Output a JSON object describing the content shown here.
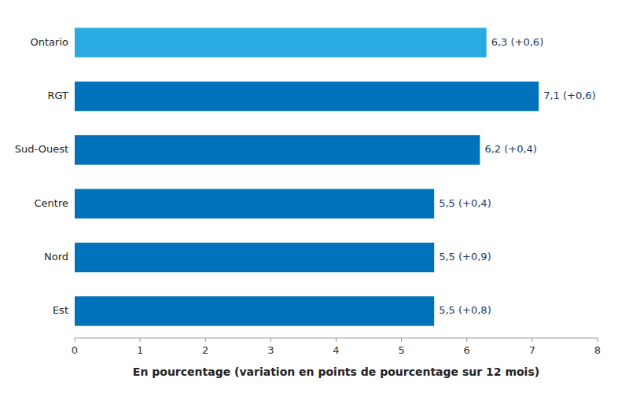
{
  "chart_data": {
    "type": "bar",
    "orientation": "horizontal",
    "categories": [
      "Ontario",
      "RGT",
      "Sud-Ouest",
      "Centre",
      "Nord",
      "Est"
    ],
    "values": [
      6.3,
      7.1,
      6.2,
      5.5,
      5.5,
      5.5
    ],
    "value_labels": [
      "6,3 (+0,6)",
      "7,1 (+0,6)",
      "6,2 (+0,4)",
      "5,5 (+0,4)",
      "5,5 (+0,9)",
      "5,5 (+0,8)"
    ],
    "colors": [
      "#29ABE2",
      "#0072BC",
      "#0072BC",
      "#0072BC",
      "#0072BC",
      "#0072BC"
    ],
    "xlabel": "En pourcentage (variation en points de pourcentage sur 12 mois)",
    "xlim": [
      0,
      8
    ],
    "xticks": [
      0,
      1,
      2,
      3,
      4,
      5,
      6,
      7,
      8
    ],
    "data_labels": true,
    "grid": false
  }
}
